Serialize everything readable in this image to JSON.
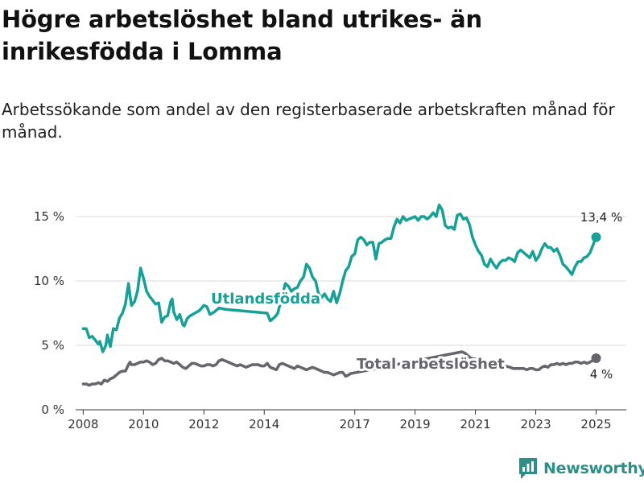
{
  "title": "Högre arbetslöshet bland utrikes- än inrikesfödda i Lomma",
  "subtitle": "Arbetssökande som andel av den registerbaserade arbetskraften månad för månad.",
  "brand": "Newsworthy",
  "chart_data": {
    "type": "line",
    "ylim": [
      0,
      16.5
    ],
    "xlim": [
      2007.75,
      2026.0
    ],
    "grid": true,
    "yticks": [
      {
        "value": 0,
        "label": "0 %"
      },
      {
        "value": 5,
        "label": "5 %"
      },
      {
        "value": 10,
        "label": "10 %"
      },
      {
        "value": 15,
        "label": "15 %"
      }
    ],
    "xticks": [
      {
        "value": 2008,
        "label": "2008"
      },
      {
        "value": 2010,
        "label": "2010"
      },
      {
        "value": 2012,
        "label": "2012"
      },
      {
        "value": 2014,
        "label": "2014"
      },
      {
        "value": 2017,
        "label": "2017"
      },
      {
        "value": 2019,
        "label": "2019"
      },
      {
        "value": 2021,
        "label": "2021"
      },
      {
        "value": 2023,
        "label": "2023"
      },
      {
        "value": 2025,
        "label": "2025"
      }
    ],
    "series": [
      {
        "name": "Utlandsfödda",
        "color": "#17a097",
        "end_label": "13,4 %",
        "points": [
          [
            2008.0,
            6.3
          ],
          [
            2008.1,
            6.3
          ],
          [
            2008.2,
            5.6
          ],
          [
            2008.3,
            5.7
          ],
          [
            2008.4,
            5.4
          ],
          [
            2008.5,
            5.1
          ],
          [
            2008.55,
            5.3
          ],
          [
            2008.65,
            4.5
          ],
          [
            2008.75,
            5.0
          ],
          [
            2008.8,
            5.8
          ],
          [
            2008.9,
            4.9
          ],
          [
            2009.0,
            6.3
          ],
          [
            2009.1,
            6.2
          ],
          [
            2009.2,
            7.1
          ],
          [
            2009.3,
            7.5
          ],
          [
            2009.4,
            8.2
          ],
          [
            2009.5,
            9.8
          ],
          [
            2009.55,
            8.9
          ],
          [
            2009.6,
            8.1
          ],
          [
            2009.7,
            8.4
          ],
          [
            2009.8,
            9.2
          ],
          [
            2009.9,
            11.0
          ],
          [
            2010.0,
            10.2
          ],
          [
            2010.1,
            9.2
          ],
          [
            2010.2,
            8.8
          ],
          [
            2010.3,
            8.5
          ],
          [
            2010.4,
            8.2
          ],
          [
            2010.5,
            8.3
          ],
          [
            2010.6,
            6.8
          ],
          [
            2010.7,
            7.2
          ],
          [
            2010.8,
            7.3
          ],
          [
            2010.9,
            8.4
          ],
          [
            2010.95,
            8.6
          ],
          [
            2011.0,
            7.6
          ],
          [
            2011.1,
            7.0
          ],
          [
            2011.2,
            7.4
          ],
          [
            2011.3,
            6.6
          ],
          [
            2011.35,
            6.5
          ],
          [
            2011.45,
            7.1
          ],
          [
            2011.55,
            7.3
          ],
          [
            2011.7,
            7.5
          ],
          [
            2011.85,
            7.7
          ],
          [
            2012.0,
            8.1
          ],
          [
            2012.1,
            8.0
          ],
          [
            2012.2,
            7.4
          ],
          [
            2012.35,
            7.6
          ],
          [
            2012.5,
            7.9
          ],
          [
            2012.7,
            7.8
          ],
          [
            2014.1,
            7.5
          ],
          [
            2014.2,
            6.9
          ],
          [
            2014.35,
            7.2
          ],
          [
            2014.45,
            7.5
          ],
          [
            2014.6,
            8.9
          ],
          [
            2014.7,
            9.8
          ],
          [
            2014.8,
            9.6
          ],
          [
            2014.9,
            9.2
          ],
          [
            2015.0,
            9.4
          ],
          [
            2015.1,
            9.5
          ],
          [
            2015.2,
            10.0
          ],
          [
            2015.3,
            10.3
          ],
          [
            2015.4,
            11.3
          ],
          [
            2015.5,
            11.0
          ],
          [
            2015.6,
            10.3
          ],
          [
            2015.7,
            10.0
          ],
          [
            2015.8,
            9.0
          ],
          [
            2015.9,
            8.7
          ],
          [
            2016.0,
            9.0
          ],
          [
            2016.1,
            8.6
          ],
          [
            2016.2,
            8.4
          ],
          [
            2016.3,
            9.2
          ],
          [
            2016.4,
            8.3
          ],
          [
            2016.5,
            9.0
          ],
          [
            2016.6,
            10.0
          ],
          [
            2016.7,
            10.8
          ],
          [
            2016.8,
            11.1
          ],
          [
            2016.9,
            11.9
          ],
          [
            2017.0,
            12.1
          ],
          [
            2017.1,
            13.2
          ],
          [
            2017.2,
            13.4
          ],
          [
            2017.3,
            13.2
          ],
          [
            2017.4,
            12.8
          ],
          [
            2017.5,
            13.0
          ],
          [
            2017.6,
            13.0
          ],
          [
            2017.7,
            11.7
          ],
          [
            2017.8,
            12.9
          ],
          [
            2017.9,
            13.0
          ],
          [
            2018.0,
            13.2
          ],
          [
            2018.1,
            13.3
          ],
          [
            2018.2,
            13.3
          ],
          [
            2018.3,
            14.2
          ],
          [
            2018.4,
            14.8
          ],
          [
            2018.5,
            14.5
          ],
          [
            2018.6,
            15.0
          ],
          [
            2018.7,
            14.7
          ],
          [
            2018.8,
            14.8
          ],
          [
            2018.9,
            14.9
          ],
          [
            2019.0,
            15.0
          ],
          [
            2019.1,
            14.7
          ],
          [
            2019.2,
            15.0
          ],
          [
            2019.3,
            15.0
          ],
          [
            2019.4,
            14.8
          ],
          [
            2019.5,
            15.0
          ],
          [
            2019.6,
            15.3
          ],
          [
            2019.7,
            15.0
          ],
          [
            2019.8,
            15.9
          ],
          [
            2019.9,
            15.5
          ],
          [
            2020.0,
            14.3
          ],
          [
            2020.1,
            14.1
          ],
          [
            2020.2,
            14.2
          ],
          [
            2020.3,
            14.0
          ],
          [
            2020.4,
            15.1
          ],
          [
            2020.5,
            15.2
          ],
          [
            2020.6,
            14.8
          ],
          [
            2020.7,
            14.9
          ],
          [
            2020.8,
            14.4
          ],
          [
            2020.9,
            13.4
          ],
          [
            2021.0,
            12.8
          ],
          [
            2021.1,
            12.3
          ],
          [
            2021.2,
            12.0
          ],
          [
            2021.3,
            11.3
          ],
          [
            2021.4,
            11.1
          ],
          [
            2021.5,
            11.7
          ],
          [
            2021.6,
            11.3
          ],
          [
            2021.7,
            11.0
          ],
          [
            2021.8,
            11.4
          ],
          [
            2021.9,
            11.6
          ],
          [
            2022.0,
            11.6
          ],
          [
            2022.1,
            11.8
          ],
          [
            2022.2,
            11.7
          ],
          [
            2022.3,
            11.5
          ],
          [
            2022.4,
            12.2
          ],
          [
            2022.5,
            12.4
          ],
          [
            2022.6,
            12.2
          ],
          [
            2022.7,
            12.0
          ],
          [
            2022.8,
            11.8
          ],
          [
            2022.9,
            12.3
          ],
          [
            2023.0,
            11.6
          ],
          [
            2023.1,
            11.9
          ],
          [
            2023.2,
            12.5
          ],
          [
            2023.3,
            12.9
          ],
          [
            2023.4,
            12.6
          ],
          [
            2023.5,
            12.6
          ],
          [
            2023.6,
            12.3
          ],
          [
            2023.7,
            12.5
          ],
          [
            2023.8,
            12.0
          ],
          [
            2023.9,
            11.3
          ],
          [
            2024.0,
            11.1
          ],
          [
            2024.1,
            10.8
          ],
          [
            2024.2,
            10.5
          ],
          [
            2024.3,
            11.1
          ],
          [
            2024.4,
            11.5
          ],
          [
            2024.5,
            11.5
          ],
          [
            2024.6,
            11.8
          ],
          [
            2024.7,
            11.9
          ],
          [
            2024.8,
            12.2
          ],
          [
            2025.0,
            13.4
          ]
        ]
      },
      {
        "name": "Total arbetslöshet",
        "color": "#66656d",
        "end_label": "4 %",
        "points": [
          [
            2008.0,
            2.0
          ],
          [
            2008.1,
            2.0
          ],
          [
            2008.2,
            1.9
          ],
          [
            2008.3,
            2.0
          ],
          [
            2008.4,
            2.0
          ],
          [
            2008.5,
            2.1
          ],
          [
            2008.6,
            2.0
          ],
          [
            2008.7,
            2.3
          ],
          [
            2008.8,
            2.2
          ],
          [
            2008.9,
            2.4
          ],
          [
            2009.0,
            2.5
          ],
          [
            2009.1,
            2.7
          ],
          [
            2009.2,
            2.9
          ],
          [
            2009.3,
            3.0
          ],
          [
            2009.4,
            3.0
          ],
          [
            2009.5,
            3.5
          ],
          [
            2009.55,
            3.7
          ],
          [
            2009.6,
            3.5
          ],
          [
            2009.7,
            3.5
          ],
          [
            2009.8,
            3.6
          ],
          [
            2009.9,
            3.7
          ],
          [
            2010.0,
            3.7
          ],
          [
            2010.1,
            3.8
          ],
          [
            2010.2,
            3.7
          ],
          [
            2010.3,
            3.5
          ],
          [
            2010.4,
            3.6
          ],
          [
            2010.5,
            3.9
          ],
          [
            2010.6,
            4.0
          ],
          [
            2010.7,
            3.8
          ],
          [
            2010.8,
            3.8
          ],
          [
            2010.9,
            3.7
          ],
          [
            2011.0,
            3.6
          ],
          [
            2011.1,
            3.7
          ],
          [
            2011.2,
            3.5
          ],
          [
            2011.3,
            3.3
          ],
          [
            2011.4,
            3.2
          ],
          [
            2011.5,
            3.4
          ],
          [
            2011.6,
            3.6
          ],
          [
            2011.7,
            3.6
          ],
          [
            2011.8,
            3.5
          ],
          [
            2011.9,
            3.4
          ],
          [
            2012.0,
            3.4
          ],
          [
            2012.1,
            3.5
          ],
          [
            2012.2,
            3.5
          ],
          [
            2012.3,
            3.4
          ],
          [
            2012.4,
            3.5
          ],
          [
            2012.5,
            3.8
          ],
          [
            2012.6,
            3.9
          ],
          [
            2012.7,
            3.8
          ],
          [
            2012.8,
            3.7
          ],
          [
            2012.9,
            3.6
          ],
          [
            2013.0,
            3.5
          ],
          [
            2013.1,
            3.4
          ],
          [
            2013.2,
            3.5
          ],
          [
            2013.3,
            3.4
          ],
          [
            2013.4,
            3.3
          ],
          [
            2013.5,
            3.4
          ],
          [
            2013.6,
            3.5
          ],
          [
            2013.7,
            3.5
          ],
          [
            2013.8,
            3.5
          ],
          [
            2013.9,
            3.4
          ],
          [
            2014.0,
            3.4
          ],
          [
            2014.1,
            3.6
          ],
          [
            2014.2,
            3.3
          ],
          [
            2014.3,
            3.2
          ],
          [
            2014.4,
            3.1
          ],
          [
            2014.5,
            3.5
          ],
          [
            2014.6,
            3.6
          ],
          [
            2014.7,
            3.5
          ],
          [
            2014.8,
            3.4
          ],
          [
            2014.9,
            3.3
          ],
          [
            2015.0,
            3.2
          ],
          [
            2015.1,
            3.4
          ],
          [
            2015.2,
            3.3
          ],
          [
            2015.3,
            3.2
          ],
          [
            2015.4,
            3.1
          ],
          [
            2015.5,
            3.2
          ],
          [
            2015.6,
            3.3
          ],
          [
            2015.7,
            3.2
          ],
          [
            2015.8,
            3.1
          ],
          [
            2015.9,
            3.0
          ],
          [
            2016.0,
            2.9
          ],
          [
            2016.1,
            2.9
          ],
          [
            2016.2,
            2.8
          ],
          [
            2016.3,
            2.7
          ],
          [
            2016.4,
            2.8
          ],
          [
            2016.5,
            2.9
          ],
          [
            2016.6,
            2.9
          ],
          [
            2016.7,
            2.6
          ],
          [
            2016.8,
            2.7
          ],
          [
            2016.85,
            2.8
          ],
          [
            2020.55,
            4.5
          ],
          [
            2020.65,
            4.4
          ],
          [
            2020.75,
            4.2
          ],
          [
            2020.85,
            4.0
          ],
          [
            2022.15,
            3.3
          ],
          [
            2022.25,
            3.2
          ],
          [
            2022.3,
            3.2
          ],
          [
            2022.4,
            3.2
          ],
          [
            2022.5,
            3.2
          ],
          [
            2022.6,
            3.2
          ],
          [
            2022.7,
            3.1
          ],
          [
            2022.8,
            3.2
          ],
          [
            2022.9,
            3.2
          ],
          [
            2023.0,
            3.1
          ],
          [
            2023.1,
            3.1
          ],
          [
            2023.2,
            3.3
          ],
          [
            2023.3,
            3.4
          ],
          [
            2023.4,
            3.3
          ],
          [
            2023.5,
            3.5
          ],
          [
            2023.6,
            3.5
          ],
          [
            2023.7,
            3.6
          ],
          [
            2023.8,
            3.5
          ],
          [
            2023.9,
            3.6
          ],
          [
            2024.0,
            3.5
          ],
          [
            2024.1,
            3.6
          ],
          [
            2024.2,
            3.6
          ],
          [
            2024.3,
            3.7
          ],
          [
            2024.4,
            3.7
          ],
          [
            2024.5,
            3.6
          ],
          [
            2024.6,
            3.7
          ],
          [
            2024.7,
            3.6
          ],
          [
            2024.8,
            3.7
          ],
          [
            2025.0,
            4.0
          ]
        ]
      }
    ]
  }
}
